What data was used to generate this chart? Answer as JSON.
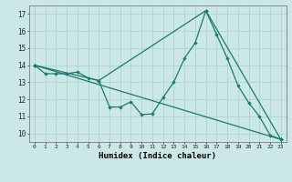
{
  "title": "",
  "xlabel": "Humidex (Indice chaleur)",
  "ylabel": "",
  "background_color": "#cce8e6",
  "grid_color": "#aacfcc",
  "line_color": "#1a7a6e",
  "xlim": [
    -0.5,
    23.5
  ],
  "ylim": [
    9.5,
    17.5
  ],
  "xticks": [
    0,
    1,
    2,
    3,
    4,
    5,
    6,
    7,
    8,
    9,
    10,
    11,
    12,
    13,
    14,
    15,
    16,
    17,
    18,
    19,
    20,
    21,
    22,
    23
  ],
  "yticks": [
    10,
    11,
    12,
    13,
    14,
    15,
    16,
    17
  ],
  "series1": [
    [
      0,
      14.0
    ],
    [
      1,
      13.5
    ],
    [
      2,
      13.5
    ],
    [
      3,
      13.5
    ],
    [
      4,
      13.6
    ],
    [
      5,
      13.25
    ],
    [
      6,
      13.1
    ],
    [
      7,
      11.55
    ],
    [
      8,
      11.55
    ],
    [
      9,
      11.85
    ],
    [
      10,
      11.1
    ],
    [
      11,
      11.15
    ],
    [
      12,
      12.1
    ],
    [
      13,
      13.0
    ],
    [
      14,
      14.4
    ],
    [
      15,
      15.3
    ],
    [
      16,
      17.2
    ],
    [
      17,
      15.8
    ],
    [
      18,
      14.4
    ],
    [
      19,
      12.8
    ],
    [
      20,
      11.8
    ],
    [
      21,
      11.0
    ],
    [
      22,
      9.9
    ],
    [
      23,
      9.65
    ]
  ],
  "series2": [
    [
      0,
      14.0
    ],
    [
      23,
      9.65
    ]
  ],
  "series3": [
    [
      0,
      14.0
    ],
    [
      6,
      13.1
    ],
    [
      16,
      17.2
    ],
    [
      23,
      9.65
    ]
  ]
}
